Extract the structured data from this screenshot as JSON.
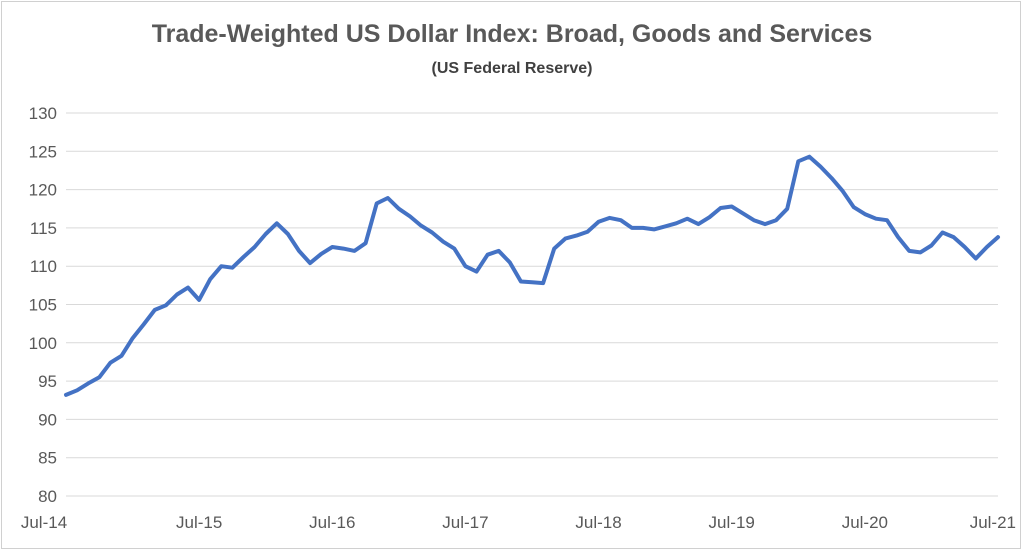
{
  "chart_data": {
    "type": "line",
    "title": "Trade-Weighted US Dollar Index: Broad, Goods and Services",
    "subtitle": "(US Federal Reserve)",
    "xlabel": "",
    "ylabel": "",
    "ylim": [
      80,
      130
    ],
    "y_ticks": [
      80,
      85,
      90,
      95,
      100,
      105,
      110,
      115,
      120,
      125,
      130
    ],
    "x_range": [
      "2014-07",
      "2021-07"
    ],
    "x_ticks": [
      "Jul-14",
      "Jul-15",
      "Jul-16",
      "Jul-17",
      "Jul-18",
      "Jul-19",
      "Jul-20",
      "Jul-21"
    ],
    "grid": "horizontal",
    "legend": "none",
    "line_color": "#4472C4",
    "series": [
      {
        "x": [
          "2014-07",
          "2014-08",
          "2014-09",
          "2014-10",
          "2014-11",
          "2014-12",
          "2015-01",
          "2015-02",
          "2015-03",
          "2015-04",
          "2015-05",
          "2015-06",
          "2015-07",
          "2015-08",
          "2015-09",
          "2015-10",
          "2015-11",
          "2015-12",
          "2016-01",
          "2016-02",
          "2016-03",
          "2016-04",
          "2016-05",
          "2016-06",
          "2016-07",
          "2016-08",
          "2016-09",
          "2016-10",
          "2016-11",
          "2016-12",
          "2017-01",
          "2017-02",
          "2017-03",
          "2017-04",
          "2017-05",
          "2017-06",
          "2017-07",
          "2017-08",
          "2017-09",
          "2017-10",
          "2017-11",
          "2017-12",
          "2018-01",
          "2018-02",
          "2018-03",
          "2018-04",
          "2018-05",
          "2018-06",
          "2018-07",
          "2018-08",
          "2018-09",
          "2018-10",
          "2018-11",
          "2018-12",
          "2019-01",
          "2019-02",
          "2019-03",
          "2019-04",
          "2019-05",
          "2019-06",
          "2019-07",
          "2019-08",
          "2019-09",
          "2019-10",
          "2019-11",
          "2019-12",
          "2020-01",
          "2020-02",
          "2020-03",
          "2020-04",
          "2020-05",
          "2020-06",
          "2020-07",
          "2020-08",
          "2020-09",
          "2020-10",
          "2020-11",
          "2020-12",
          "2021-01",
          "2021-02",
          "2021-03",
          "2021-04",
          "2021-05",
          "2021-06",
          "2021-07"
        ],
        "values": [
          93.2,
          93.8,
          94.7,
          95.5,
          97.4,
          98.3,
          100.6,
          102.4,
          104.3,
          104.9,
          106.3,
          107.2,
          105.6,
          108.3,
          110.0,
          109.8,
          111.2,
          112.5,
          114.2,
          115.6,
          114.2,
          112.0,
          110.4,
          111.6,
          112.5,
          112.3,
          112.0,
          113.0,
          118.2,
          118.9,
          117.5,
          116.5,
          115.3,
          114.4,
          113.2,
          112.3,
          110.0,
          109.3,
          111.5,
          112.0,
          110.5,
          108.0,
          107.9,
          107.8,
          112.3,
          113.6,
          114.0,
          114.5,
          115.8,
          116.3,
          116.0,
          115.0,
          115.0,
          114.8,
          115.2,
          115.6,
          116.2,
          115.5,
          116.4,
          117.6,
          117.8,
          116.9,
          116.0,
          115.5,
          116.0,
          117.5,
          123.7,
          124.3,
          123.0,
          121.5,
          119.8,
          117.7,
          116.8,
          116.2,
          116.0,
          113.8,
          112.0,
          111.8,
          112.7,
          114.4,
          113.8,
          112.5,
          111.0,
          112.5,
          113.8
        ]
      }
    ]
  }
}
